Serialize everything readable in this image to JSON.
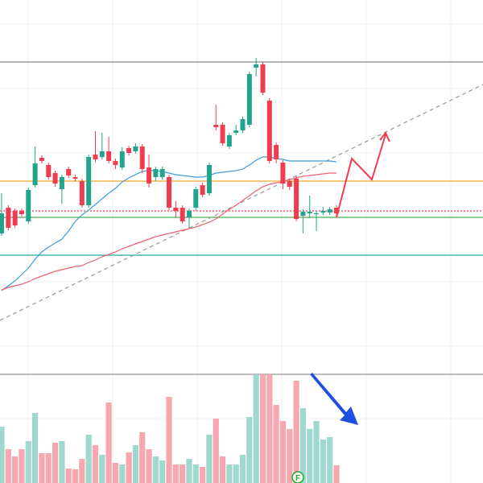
{
  "chart_data": {
    "type": "candlestick",
    "ylim": [
      0,
      465
    ],
    "volume_lim": [
      0,
      135
    ],
    "grid": true,
    "up_color": "#22a38c",
    "down_color": "#ef3d4f",
    "volume_up_color": "#9fd8cf",
    "volume_down_color": "#f7a7b0",
    "open": [
      175,
      207,
      203,
      203,
      190,
      235,
      269,
      260,
      250,
      230,
      255,
      245,
      240,
      210,
      273,
      270,
      277,
      265,
      257,
      281,
      277,
      283,
      257,
      245,
      245,
      245,
      207,
      207,
      195,
      207,
      235,
      225,
      310,
      310,
      283,
      300,
      303,
      310,
      381,
      385,
      340,
      285,
      263,
      240,
      243,
      197,
      200,
      199,
      201,
      201,
      207
    ],
    "high": [
      225,
      210,
      206,
      206,
      232,
      283,
      272,
      263,
      253,
      248,
      258,
      248,
      243,
      273,
      302,
      300,
      295,
      268,
      282,
      284,
      287,
      286,
      273,
      258,
      258,
      248,
      215,
      210,
      206,
      233,
      238,
      263,
      335,
      313,
      300,
      310,
      320,
      376,
      393,
      388,
      343,
      288,
      266,
      243,
      246,
      205,
      222,
      203,
      208,
      208,
      210
    ],
    "low": [
      172,
      179,
      182,
      196,
      187,
      232,
      262,
      242,
      233,
      212,
      244,
      240,
      207,
      207,
      264,
      267,
      262,
      255,
      254,
      272,
      274,
      250,
      232,
      240,
      242,
      204,
      195,
      187,
      182,
      203,
      220,
      222,
      303,
      284,
      280,
      297,
      300,
      307,
      370,
      347,
      262,
      262,
      230,
      229,
      190,
      175,
      195,
      178,
      198,
      198,
      197
    ],
    "close": [
      200,
      182,
      185,
      199,
      229,
      262,
      265,
      245,
      237,
      245,
      247,
      243,
      210,
      270,
      267,
      277,
      265,
      260,
      277,
      275,
      283,
      255,
      237,
      255,
      255,
      207,
      203,
      190,
      203,
      230,
      223,
      260,
      307,
      287,
      297,
      303,
      317,
      373,
      385,
      350,
      265,
      267,
      237,
      233,
      193,
      202,
      202,
      200,
      203,
      205,
      200
    ],
    "volume": [
      70,
      42,
      33,
      42,
      52,
      87,
      37,
      37,
      50,
      52,
      18,
      17,
      30,
      60,
      47,
      35,
      100,
      25,
      23,
      38,
      47,
      63,
      42,
      33,
      28,
      107,
      23,
      23,
      30,
      23,
      20,
      60,
      80,
      33,
      23,
      23,
      35,
      82,
      135,
      135,
      135,
      97,
      77,
      67,
      127,
      93,
      67,
      77,
      54,
      57,
      22
    ],
    "series": [
      {
        "color": "#3a9ee0",
        "values": [
          104,
          110,
          116,
          124,
          132,
          143,
          152,
          158,
          163,
          168,
          178,
          190,
          198,
          204,
          211,
          218,
          225,
          231,
          239,
          244,
          248,
          252,
          253,
          253,
          252,
          250,
          248,
          247,
          246,
          245,
          245,
          247,
          250,
          251,
          252,
          253,
          255,
          260,
          266,
          270,
          270,
          268,
          267,
          265,
          265,
          265,
          265,
          265,
          265,
          265,
          264
        ]
      },
      {
        "color": "#f06070",
        "values": [
          105,
          108,
          110,
          112,
          115,
          119,
          122,
          125,
          128,
          130,
          132,
          134,
          135,
          139,
          142,
          146,
          149,
          152,
          156,
          159,
          162,
          165,
          168,
          171,
          173,
          175,
          177,
          179,
          181,
          183,
          186,
          189,
          193,
          199,
          205,
          210,
          216,
          222,
          228,
          233,
          236,
          238,
          239,
          242,
          244,
          246,
          247,
          248,
          249,
          250,
          250
        ]
      }
    ],
    "levels": [
      {
        "value": 388,
        "color": "#888888",
        "style": "solid"
      },
      {
        "value": 240,
        "color": "#f5a623",
        "style": "solid"
      },
      {
        "value": 203,
        "color": "#ef3d4f",
        "style": "dotted"
      },
      {
        "value": 195,
        "color": "#4caf50",
        "style": "solid"
      },
      {
        "value": 148,
        "color": "#26a69a",
        "style": "solid"
      }
    ],
    "marker": "F"
  }
}
